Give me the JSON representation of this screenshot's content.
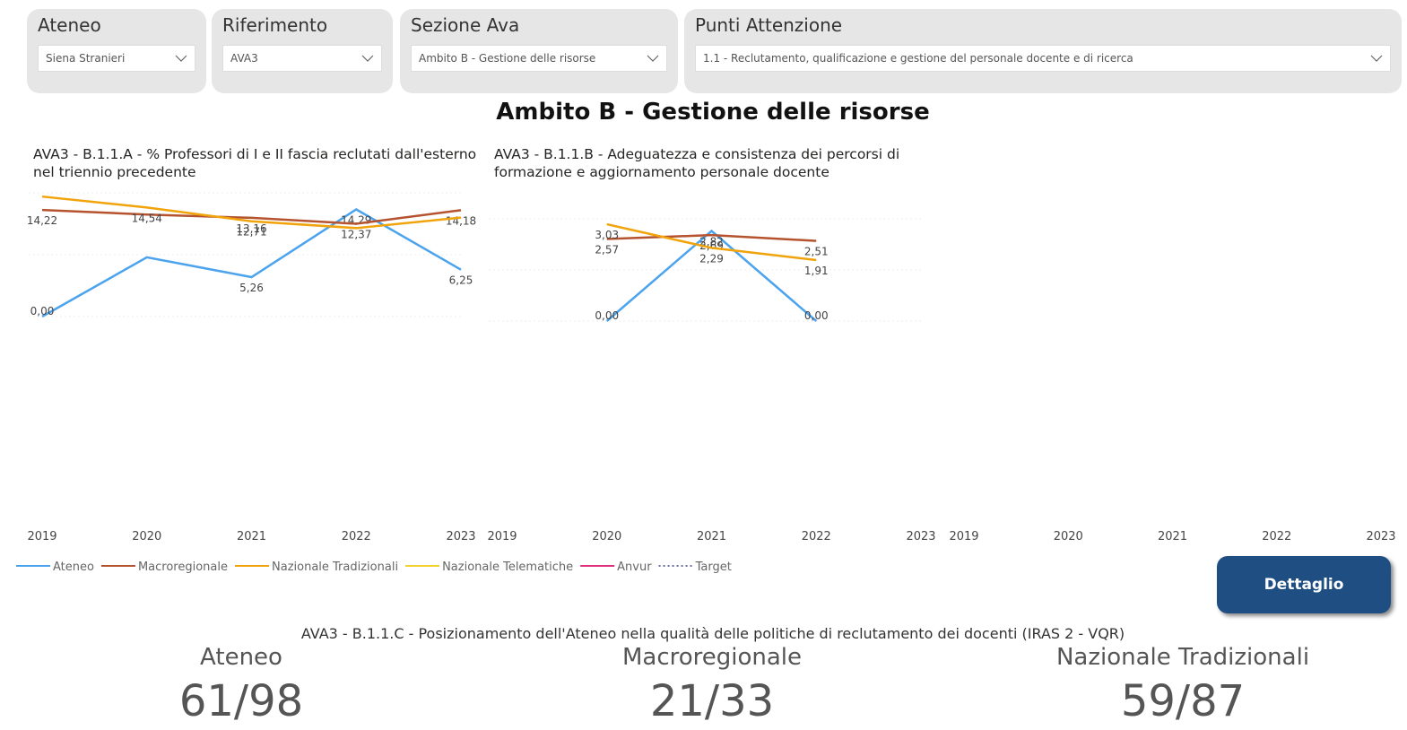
{
  "filters": [
    {
      "label": "Ateneo",
      "value": "Siena Stranieri"
    },
    {
      "label": "Riferimento",
      "value": "AVA3"
    },
    {
      "label": "Sezione Ava",
      "value": "Ambito B - Gestione delle risorse"
    },
    {
      "label": "Punti Attenzione",
      "value": "1.1 - Reclutamento, qualificazione e gestione del personale docente e di ricerca"
    }
  ],
  "heading": "Ambito B - Gestione delle risorse",
  "chart_data": [
    {
      "type": "line",
      "title": "AVA3 - B.1.1.A - % Professori di I e II fascia reclutati dall'esterno nel triennio precedente",
      "categories": [
        "2019",
        "2020",
        "2021",
        "2022",
        "2023"
      ],
      "ylim": [
        0,
        16.5
      ],
      "series": [
        {
          "name": "Ateneo",
          "color": "#4ba3ee",
          "values": [
            0.0,
            7.9,
            5.26,
            14.29,
            6.25
          ],
          "value_labels": [
            "0,00",
            null,
            "5,26",
            "14,29",
            "6,25"
          ]
        },
        {
          "name": "Macroregionale",
          "color": "#b5532f",
          "values": [
            14.22,
            13.6,
            13.16,
            12.37,
            14.18
          ],
          "value_labels": [
            "14,22",
            null,
            "13,16",
            "12,37",
            "14,18"
          ]
        },
        {
          "name": "Nazionale Tradizionali",
          "color": "#f0a30a",
          "values": [
            16.0,
            14.54,
            12.71,
            11.8,
            13.2
          ],
          "value_labels": [
            null,
            "14,54",
            "12,71",
            null,
            null
          ]
        }
      ]
    },
    {
      "type": "line",
      "title": "AVA3 - B.1.1.B - Adeguatezza e consistenza dei percorsi di formazione e aggiornamento personale docente",
      "categories": [
        "2019",
        "2020",
        "2021",
        "2022",
        "2023"
      ],
      "ylim": [
        0,
        3.2
      ],
      "series": [
        {
          "name": "Ateneo",
          "color": "#4ba3ee",
          "values": [
            null,
            0.0,
            2.82,
            0.0,
            null
          ],
          "value_labels": [
            null,
            "0,00",
            "2,82",
            "0,00",
            null
          ]
        },
        {
          "name": "Macroregionale",
          "color": "#b5532f",
          "values": [
            null,
            2.57,
            2.69,
            2.51,
            null
          ],
          "value_labels": [
            null,
            "2,57",
            "2,69",
            "2,51",
            null
          ]
        },
        {
          "name": "Nazionale Tradizionali",
          "color": "#f0a30a",
          "values": [
            null,
            3.03,
            2.29,
            1.91,
            null
          ],
          "value_labels": [
            null,
            "3,03",
            "2,29",
            "1,91",
            null
          ]
        }
      ]
    },
    {
      "type": "line",
      "categories": [
        "2019",
        "2020",
        "2021",
        "2022",
        "2023"
      ],
      "series": []
    }
  ],
  "legend": [
    {
      "name": "Ateneo",
      "color": "#4ba3ee",
      "style": "solid"
    },
    {
      "name": "Macroregionale",
      "color": "#b5532f",
      "style": "solid"
    },
    {
      "name": "Nazionale Tradizionali",
      "color": "#f0a30a",
      "style": "solid"
    },
    {
      "name": "Nazionale Telematiche",
      "color": "#f2d22b",
      "style": "solid"
    },
    {
      "name": "Anvur",
      "color": "#e0307d",
      "style": "solid"
    },
    {
      "name": "Target",
      "color": "#6b6fa6",
      "style": "dotted"
    }
  ],
  "button": "Dettaglio",
  "kpi": {
    "title": "AVA3 - B.1.1.C - Posizionamento dell'Ateneo nella qualità delle politiche di reclutamento dei docenti (IRAS 2 - VQR)",
    "items": [
      {
        "label": "Ateneo",
        "value": "61/98"
      },
      {
        "label": "Macroregionale",
        "value": "21/33"
      },
      {
        "label": "Nazionale Tradizionali",
        "value": "59/87"
      }
    ]
  }
}
